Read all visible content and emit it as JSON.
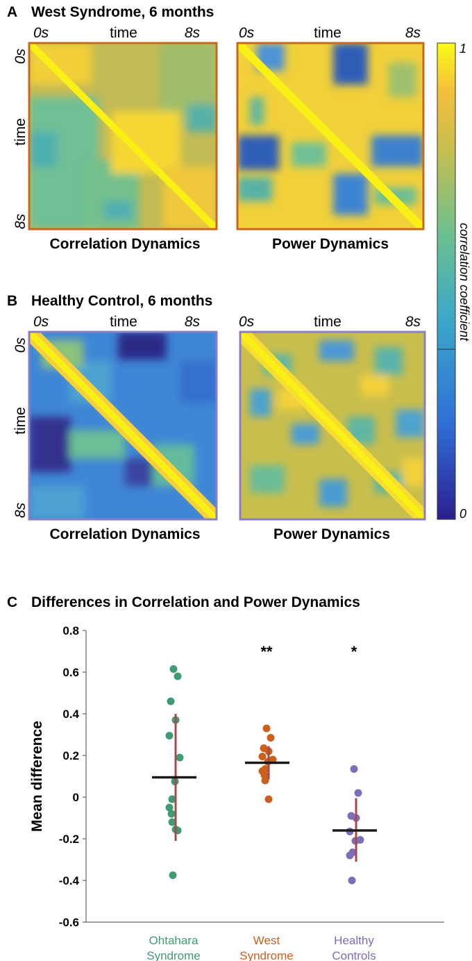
{
  "panel_a": {
    "letter": "A",
    "title": "West Syndrome, 6 months",
    "left_title": "Correlation Dynamics",
    "right_title": "Power Dynamics",
    "frame_color": "#c8681e"
  },
  "panel_b": {
    "letter": "B",
    "title": "Healthy Control, 6 months",
    "left_title": "Correlation Dynamics",
    "right_title": "Power Dynamics",
    "frame_color": "#8a7fc4"
  },
  "matrix_axes": {
    "start": "0s",
    "word": "time",
    "end": "8s"
  },
  "colorbar": {
    "max": "1",
    "min": "0",
    "label": "correlation coefficient",
    "stops": [
      "#2b1f8f",
      "#2f6fd6",
      "#3aa8c9",
      "#6cc08e",
      "#c9be4c",
      "#f5bf3a",
      "#f9fb15"
    ]
  },
  "panel_c": {
    "letter": "C",
    "title": "Differences in Correlation and Power Dynamics"
  },
  "chart_data": {
    "type": "scatter",
    "title": "Differences in Correlation and Power Dynamics",
    "xlabel": "",
    "ylabel": "Mean difference",
    "ylim": [
      -0.6,
      0.8
    ],
    "yticks": [
      "0.8",
      "0.6",
      "0.4",
      "0.2",
      "0",
      "-0.2",
      "-0.4",
      "-0.6"
    ],
    "categories": [
      "Ohtahara Syndrome",
      "West Syndrome",
      "Healthy Controls"
    ],
    "category_lines": [
      [
        "Ohtahara",
        "Syndrome"
      ],
      [
        "West",
        "Syndrome"
      ],
      [
        "Healthy",
        "Controls"
      ]
    ],
    "colors": [
      "#3f9c72",
      "#cc5f1c",
      "#7a6fb8"
    ],
    "mean_color": "#1a1a1a",
    "errorbar_color": "#a84a4a",
    "significance": [
      "",
      "**",
      "*"
    ],
    "series": [
      {
        "name": "Ohtahara Syndrome",
        "mean": 0.095,
        "err_low": -0.21,
        "err_high": 0.4,
        "points": [
          0.615,
          0.58,
          0.46,
          0.37,
          0.295,
          0.19,
          0.075,
          -0.01,
          -0.05,
          -0.08,
          -0.12,
          -0.155,
          -0.16,
          -0.375
        ]
      },
      {
        "name": "West Syndrome",
        "mean": 0.165,
        "err_low": 0.085,
        "err_high": 0.245,
        "points": [
          0.33,
          0.285,
          0.235,
          0.22,
          0.195,
          0.18,
          0.17,
          0.135,
          0.125,
          0.105,
          0.08,
          -0.01
        ]
      },
      {
        "name": "Healthy Controls",
        "mean": -0.16,
        "err_low": -0.31,
        "err_high": -0.005,
        "points": [
          0.135,
          0.02,
          -0.09,
          -0.1,
          -0.165,
          -0.205,
          -0.21,
          -0.265,
          -0.28,
          -0.4
        ]
      }
    ]
  }
}
